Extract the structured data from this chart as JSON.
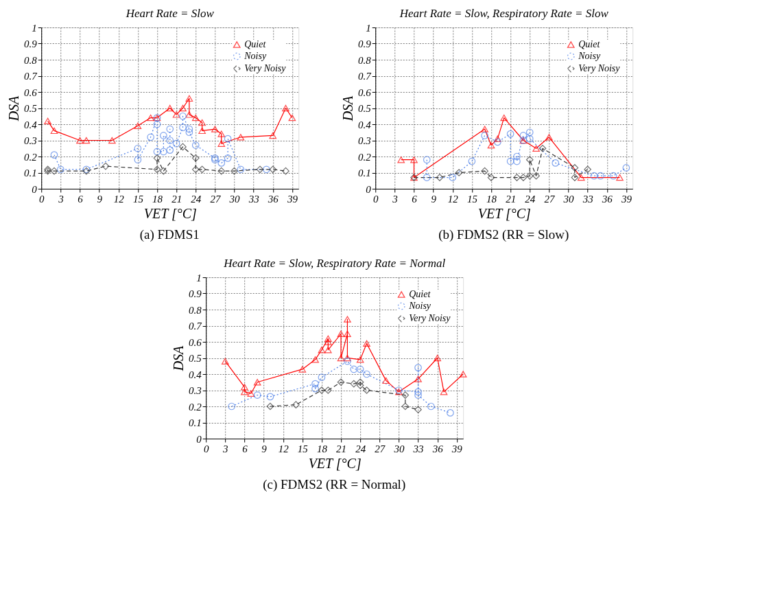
{
  "chart_data": [
    {
      "type": "line",
      "title": "Heart Rate = Slow",
      "xlabel": "VET [°C]",
      "ylabel": "DSA",
      "annotations": [
        "(a)  FDMS1"
      ],
      "xlim": [
        0,
        40
      ],
      "xticks": [
        0,
        3,
        6,
        9,
        12,
        15,
        18,
        21,
        24,
        27,
        30,
        33,
        36,
        39
      ],
      "ylim": [
        0,
        1
      ],
      "yticks": [
        0,
        0.1,
        0.2,
        0.3,
        0.4,
        0.5,
        0.6,
        0.7,
        0.8,
        0.9,
        1
      ],
      "grid": true,
      "legend": "top right",
      "series": [
        {
          "name": "Quiet",
          "color": "#ff0000",
          "marker": "triangle",
          "line_style": "solid",
          "x": [
            1,
            2,
            6,
            7,
            11,
            15,
            17,
            18,
            20,
            21,
            22,
            23,
            23,
            24,
            25,
            25,
            27,
            28,
            28,
            31,
            36,
            38,
            39
          ],
          "values": [
            0.42,
            0.36,
            0.3,
            0.3,
            0.3,
            0.39,
            0.44,
            0.44,
            0.5,
            0.46,
            0.5,
            0.56,
            0.46,
            0.44,
            0.41,
            0.36,
            0.37,
            0.34,
            0.28,
            0.32,
            0.33,
            0.5,
            0.44
          ]
        },
        {
          "name": "Noisy",
          "color": "#4d7fe6",
          "marker": "circle",
          "line_style": "dotted",
          "x": [
            2,
            3,
            7,
            15,
            15,
            17,
            18,
            18,
            18,
            19,
            19,
            20,
            20,
            20,
            21,
            22,
            22,
            23,
            23,
            24,
            27,
            27,
            28,
            29,
            29,
            31,
            35
          ],
          "values": [
            0.21,
            0.12,
            0.12,
            0.25,
            0.18,
            0.32,
            0.44,
            0.4,
            0.23,
            0.23,
            0.33,
            0.3,
            0.37,
            0.24,
            0.28,
            0.38,
            0.45,
            0.37,
            0.35,
            0.27,
            0.19,
            0.18,
            0.16,
            0.19,
            0.31,
            0.12,
            0.12
          ]
        },
        {
          "name": "Very Noisy",
          "color": "#333333",
          "marker": "diamond",
          "line_style": "dashed",
          "x": [
            1,
            1,
            2,
            7,
            10,
            18,
            18,
            19,
            22,
            24,
            24,
            25,
            28,
            30,
            34,
            36,
            38
          ],
          "values": [
            0.12,
            0.11,
            0.11,
            0.11,
            0.14,
            0.12,
            0.19,
            0.11,
            0.26,
            0.19,
            0.12,
            0.12,
            0.11,
            0.11,
            0.12,
            0.12,
            0.11
          ]
        }
      ]
    },
    {
      "type": "line",
      "title": "Heart Rate = Slow, Respiratory Rate = Slow",
      "xlabel": "VET [°C]",
      "ylabel": "DSA",
      "annotations": [
        "(b)  FDMS2 (RR = Slow)"
      ],
      "xlim": [
        0,
        40
      ],
      "xticks": [
        0,
        3,
        6,
        9,
        12,
        15,
        18,
        21,
        24,
        27,
        30,
        33,
        36,
        39
      ],
      "ylim": [
        0,
        1
      ],
      "yticks": [
        0,
        0.1,
        0.2,
        0.3,
        0.4,
        0.5,
        0.6,
        0.7,
        0.8,
        0.9,
        1
      ],
      "grid": true,
      "legend": "top right",
      "series": [
        {
          "name": "Quiet",
          "color": "#ff0000",
          "marker": "triangle",
          "line_style": "solid",
          "x": [
            4,
            6,
            6,
            17,
            18,
            19,
            20,
            23,
            25,
            27,
            32,
            38
          ],
          "values": [
            0.18,
            0.18,
            0.07,
            0.37,
            0.27,
            0.31,
            0.44,
            0.3,
            0.25,
            0.32,
            0.07,
            0.07
          ]
        },
        {
          "name": "Noisy",
          "color": "#4d7fe6",
          "marker": "circle",
          "line_style": "dotted",
          "x": [
            8,
            8,
            12,
            15,
            17,
            19,
            21,
            21,
            22,
            22,
            23,
            23,
            24,
            24,
            28,
            34,
            35,
            37,
            39
          ],
          "values": [
            0.18,
            0.07,
            0.07,
            0.17,
            0.33,
            0.29,
            0.34,
            0.17,
            0.2,
            0.17,
            0.33,
            0.3,
            0.35,
            0.31,
            0.16,
            0.08,
            0.08,
            0.08,
            0.13
          ]
        },
        {
          "name": "Very Noisy",
          "color": "#333333",
          "marker": "diamond",
          "line_style": "dashed",
          "x": [
            6,
            10,
            13,
            17,
            18,
            22,
            23,
            24,
            24,
            25,
            26,
            31,
            31,
            33
          ],
          "values": [
            0.07,
            0.07,
            0.1,
            0.11,
            0.07,
            0.07,
            0.07,
            0.08,
            0.18,
            0.08,
            0.25,
            0.13,
            0.07,
            0.12
          ]
        }
      ]
    },
    {
      "type": "line",
      "title": "Heart Rate = Slow, Respiratory Rate = Normal",
      "xlabel": "VET [°C]",
      "ylabel": "DSA",
      "annotations": [
        "(c)  FDMS2 (RR = Normal)"
      ],
      "xlim": [
        0,
        40
      ],
      "xticks": [
        0,
        3,
        6,
        9,
        12,
        15,
        18,
        21,
        24,
        27,
        30,
        33,
        36,
        39
      ],
      "ylim": [
        0,
        1
      ],
      "yticks": [
        0,
        0.1,
        0.2,
        0.3,
        0.4,
        0.5,
        0.6,
        0.7,
        0.8,
        0.9,
        1
      ],
      "grid": true,
      "legend": "top right",
      "series": [
        {
          "name": "Quiet",
          "color": "#ff0000",
          "marker": "triangle",
          "line_style": "solid",
          "x": [
            3,
            6,
            6,
            7,
            8,
            15,
            17,
            18,
            19,
            19,
            19,
            21,
            21,
            22,
            22,
            22,
            24,
            25,
            28,
            30,
            33,
            36,
            37,
            40
          ],
          "values": [
            0.48,
            0.32,
            0.29,
            0.28,
            0.35,
            0.43,
            0.49,
            0.55,
            0.62,
            0.6,
            0.55,
            0.65,
            0.5,
            0.65,
            0.74,
            0.5,
            0.49,
            0.59,
            0.36,
            0.29,
            0.37,
            0.5,
            0.29,
            0.4
          ]
        },
        {
          "name": "Noisy",
          "color": "#4d7fe6",
          "marker": "circle",
          "line_style": "dotted",
          "x": [
            4,
            8,
            10,
            17,
            17,
            18,
            22,
            23,
            24,
            25,
            30,
            33,
            33,
            33,
            35,
            38
          ],
          "values": [
            0.2,
            0.27,
            0.26,
            0.34,
            0.31,
            0.38,
            0.48,
            0.43,
            0.43,
            0.4,
            0.3,
            0.29,
            0.44,
            0.27,
            0.2,
            0.16
          ]
        },
        {
          "name": "Very Noisy",
          "color": "#333333",
          "marker": "diamond",
          "line_style": "dashed",
          "x": [
            10,
            14,
            18,
            19,
            21,
            23,
            24,
            24,
            25,
            31,
            31,
            33
          ],
          "values": [
            0.2,
            0.21,
            0.3,
            0.3,
            0.35,
            0.34,
            0.35,
            0.33,
            0.3,
            0.27,
            0.2,
            0.18
          ]
        }
      ]
    }
  ]
}
